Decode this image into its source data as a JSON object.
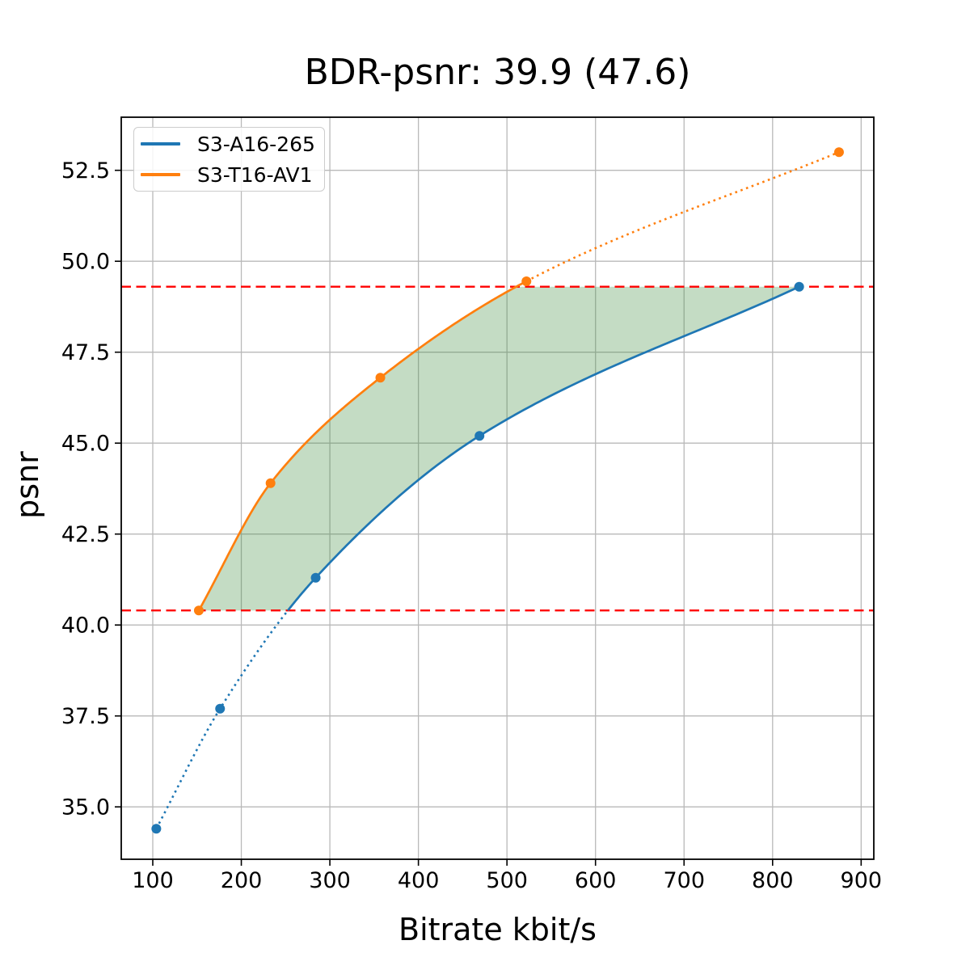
{
  "chart_data": {
    "type": "line",
    "title": "BDR-psnr: 39.9 (47.6)",
    "xlabel": "Bitrate kbit/s",
    "ylabel": "psnr",
    "xlim": [
      64.4,
      914.3
    ],
    "ylim": [
      33.56,
      53.96
    ],
    "xticks": [
      100,
      200,
      300,
      400,
      500,
      600,
      700,
      800,
      900
    ],
    "yticks": [
      35.0,
      37.5,
      40.0,
      42.5,
      45.0,
      47.5,
      50.0,
      52.5
    ],
    "grid": true,
    "legend_position": "upper-left",
    "series": [
      {
        "name": "S3-A16-265",
        "color": "#1f77b4",
        "points": [
          [
            104,
            34.4
          ],
          [
            176,
            37.7
          ],
          [
            284,
            41.3
          ],
          [
            469,
            45.2
          ],
          [
            830,
            49.3
          ]
        ],
        "line_style": "dotted below lower psnr bound, solid above it"
      },
      {
        "name": "S3-T16-AV1",
        "color": "#ff7f0e",
        "points": [
          [
            152,
            40.4
          ],
          [
            233,
            43.9
          ],
          [
            357,
            46.8
          ],
          [
            522,
            49.45
          ],
          [
            875,
            53.0
          ]
        ],
        "line_style": "solid up to 4th point, dotted beyond it"
      }
    ],
    "hlines": {
      "values": [
        40.4,
        49.3
      ],
      "color": "#ff0000",
      "style": "dashed",
      "meaning": "common psnr interval bounds"
    },
    "fill_between": {
      "color": "rgba(60,140,60,0.30)",
      "y_range": [
        40.4,
        49.3
      ],
      "between": [
        "S3-T16-AV1 curve",
        "S3-A16-265 curve"
      ]
    },
    "colors": {
      "grid": "#b9b9b9",
      "spine": "#000000",
      "background": "#ffffff",
      "tick_label": "#000000"
    }
  }
}
